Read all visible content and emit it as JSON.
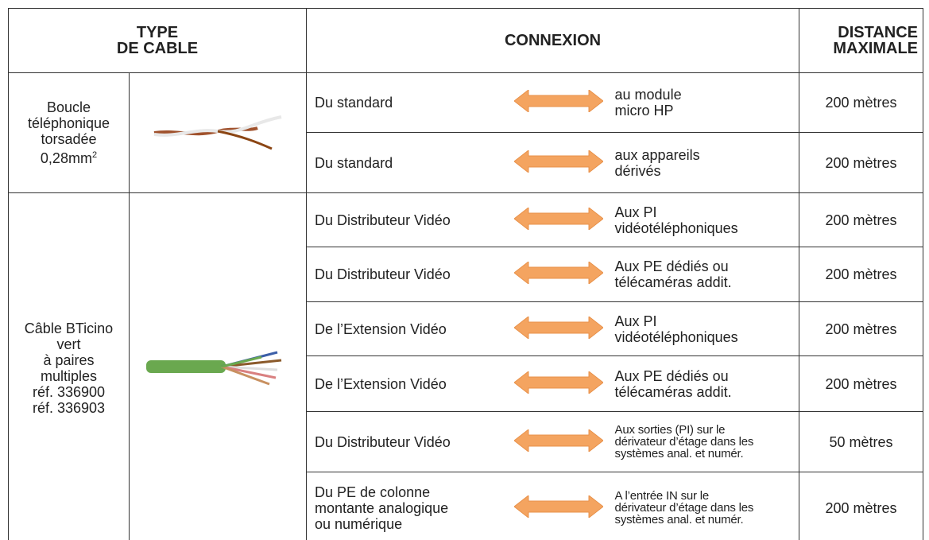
{
  "header": {
    "type_cable": [
      "TYPE",
      "DE CABLE"
    ],
    "connexion": "CONNEXION",
    "distance": [
      "DISTANCE",
      "MAXIMALE"
    ]
  },
  "groups": [
    {
      "cable": [
        "Boucle",
        "téléphonique",
        "torsadée",
        "0,28mm"
      ],
      "cable_superscript": "2",
      "rows": [
        {
          "from": [
            "Du standard"
          ],
          "to": [
            "au module",
            "micro HP"
          ],
          "distance": "200 mètres"
        },
        {
          "from": [
            "Du standard"
          ],
          "to": [
            "aux appareils",
            "dérivés"
          ],
          "distance": "200 mètres"
        }
      ]
    },
    {
      "cable": [
        "Câble BTicino",
        "vert",
        "à paires",
        "multiples",
        "réf. 336900",
        "réf. 336903"
      ],
      "rows": [
        {
          "from": [
            "Du Distributeur Vidéo"
          ],
          "to": [
            "Aux PI",
            "vidéotéléphoniques"
          ],
          "distance": "200 mètres"
        },
        {
          "from": [
            "Du Distributeur Vidéo"
          ],
          "to": [
            "Aux PE dédiés ou",
            "télécaméras addit."
          ],
          "distance": "200 mètres"
        },
        {
          "from": [
            "De l’Extension Vidéo"
          ],
          "to": [
            "Aux PI",
            "vidéotéléphoniques"
          ],
          "distance": "200 mètres"
        },
        {
          "from": [
            "De l’Extension Vidéo"
          ],
          "to": [
            "Aux PE dédiés ou",
            "télécaméras addit."
          ],
          "distance": "200 mètres"
        },
        {
          "from": [
            "Du Distributeur Vidéo"
          ],
          "to": [
            "Aux sorties (PI) sur le",
            "dérivateur d’étage dans les",
            "systèmes anal. et numér."
          ],
          "distance": "50 mètres"
        },
        {
          "from": [
            "Du PE de colonne",
            "montante analogique",
            "ou numérique"
          ],
          "to": [
            "A l’entrée IN sur le",
            "dérivateur d’étage dans les",
            "systèmes anal. et numér."
          ],
          "distance": "200 mètres"
        }
      ]
    }
  ]
}
